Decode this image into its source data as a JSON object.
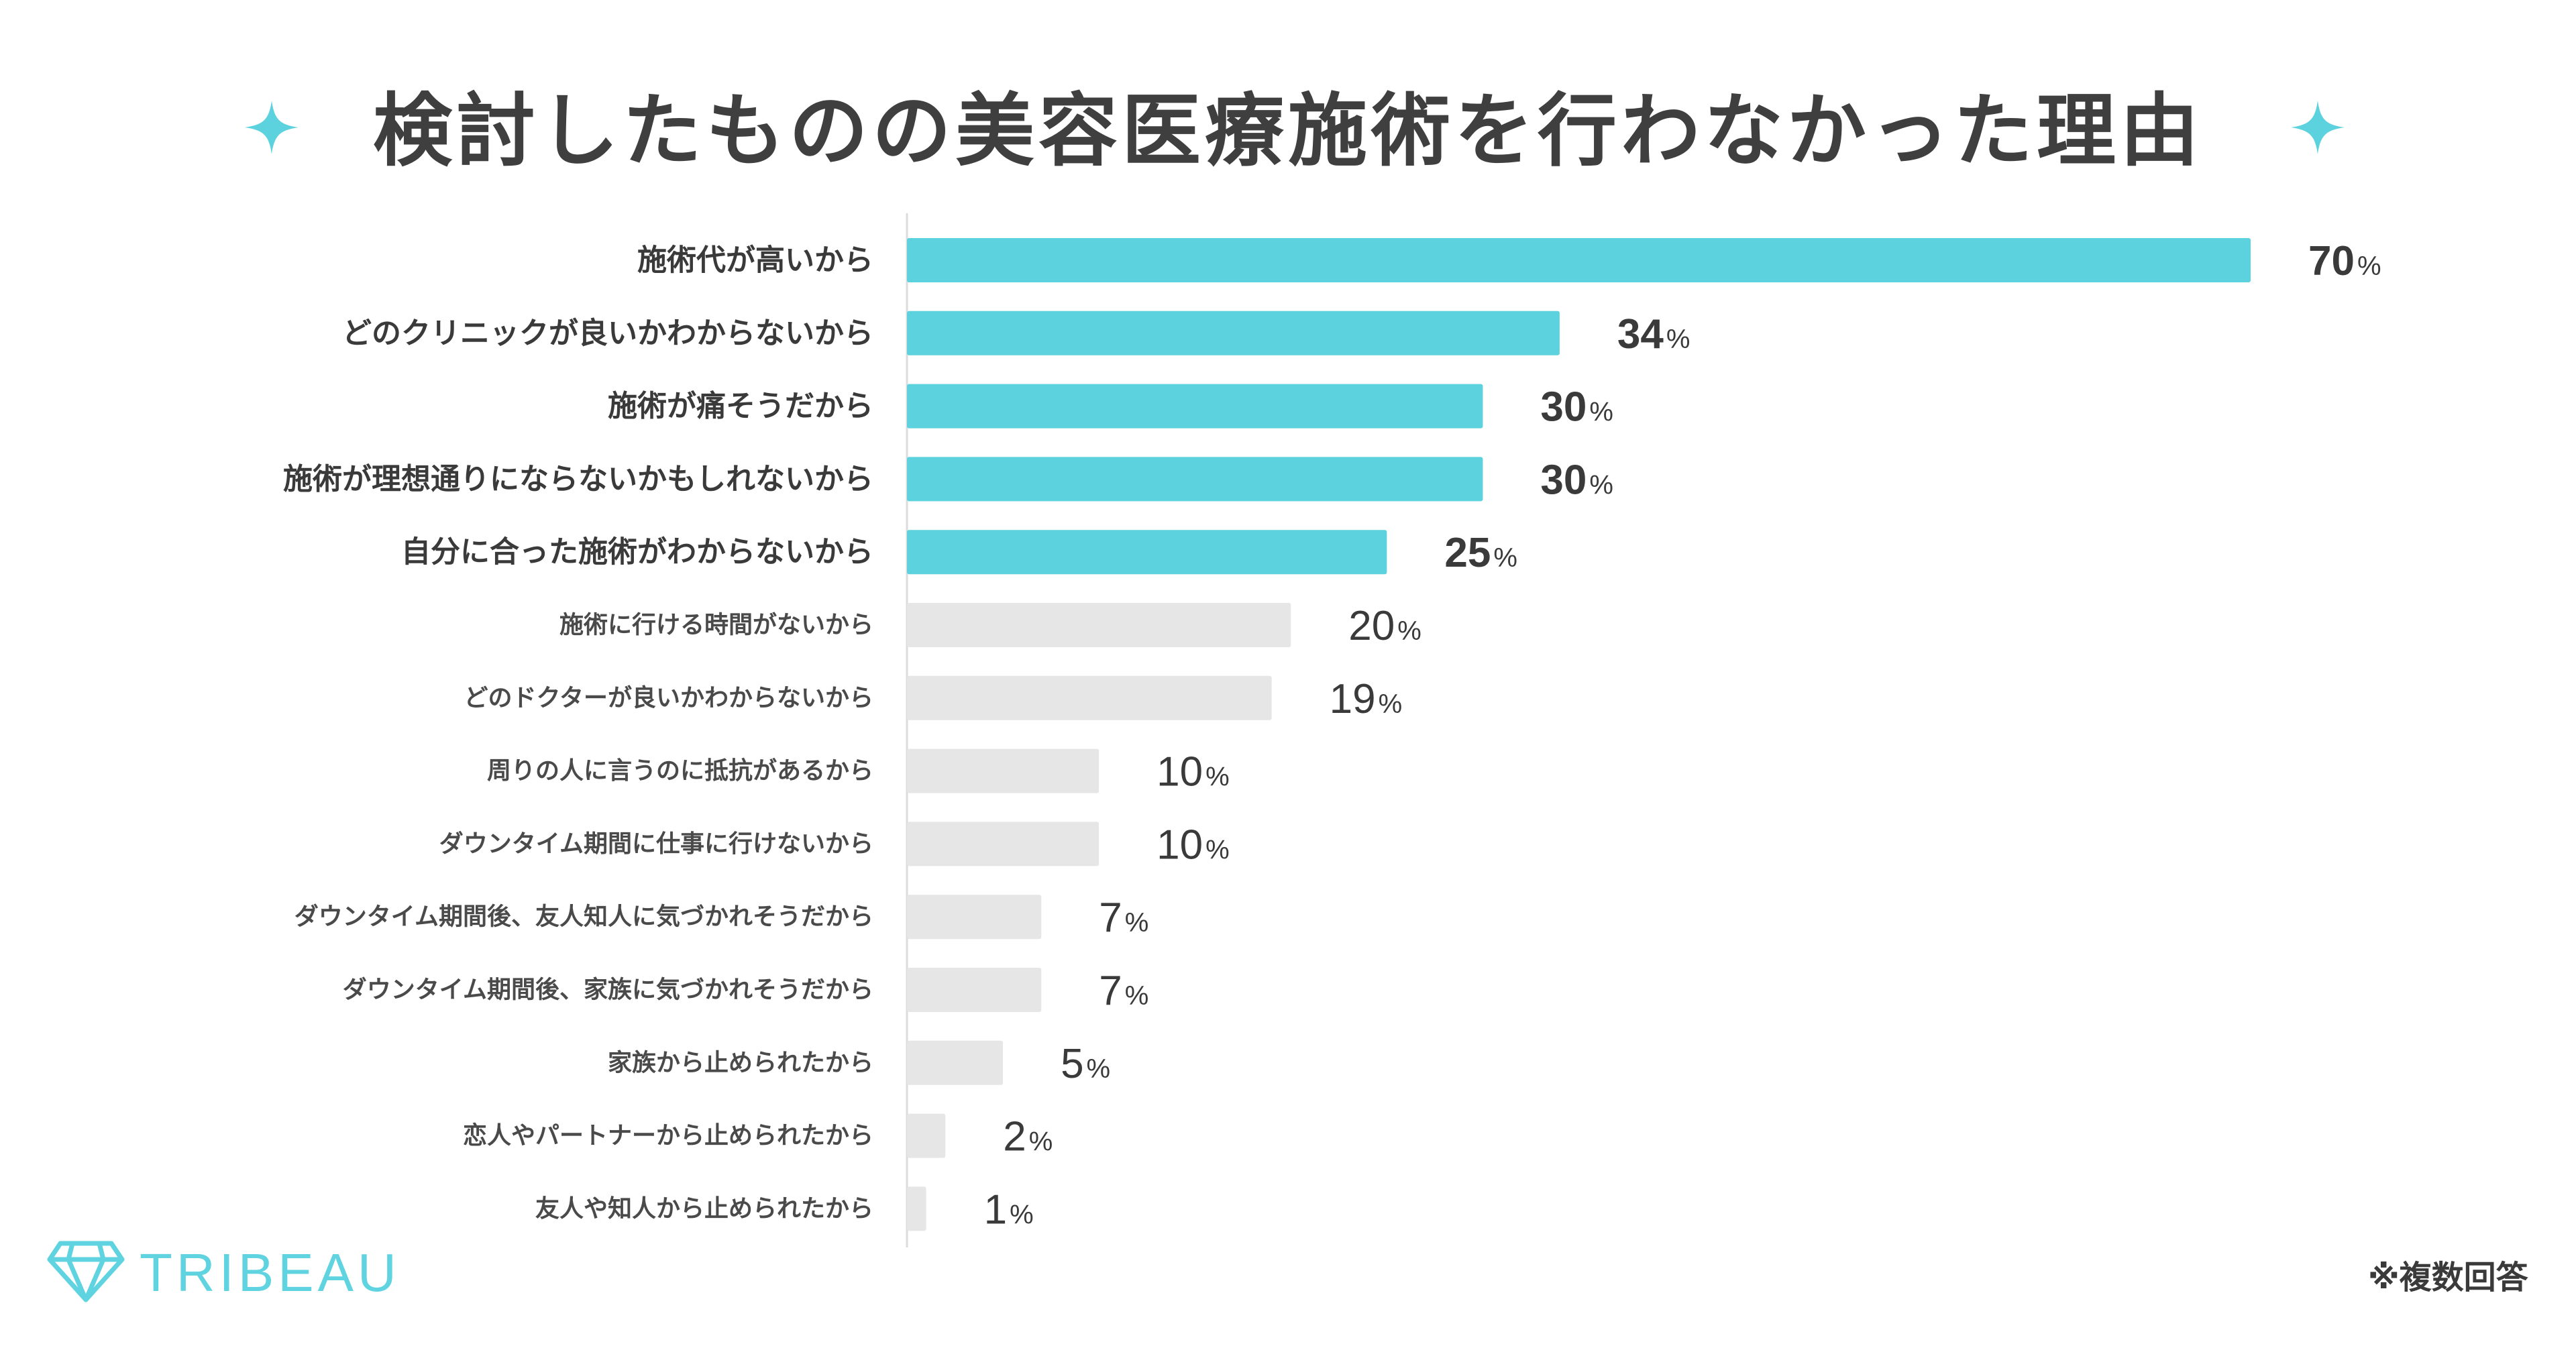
{
  "brand": {
    "name": "TRIBEAU",
    "accent_color": "#5cd2de",
    "muted_color": "#e6e6e6",
    "text_color": "#3a3a3a"
  },
  "icons": {
    "title_left": "sparkle-icon",
    "title_right": "sparkle-icon",
    "logo": "diamond-icon"
  },
  "footnote": "※複数回答",
  "chart_data": {
    "type": "bar",
    "orientation": "horizontal",
    "title": "検討したものの美容医療施術を行わなかった理由",
    "unit": "%",
    "xlim": [
      0,
      70
    ],
    "categories": [
      "施術代が高いから",
      "どのクリニックが良いかわからないから",
      "施術が痛そうだから",
      "施術が理想通りにならないかもしれないから",
      "自分に合った施術がわからないから",
      "施術に行ける時間がないから",
      "どのドクターが良いかわからないから",
      "周りの人に言うのに抵抗があるから",
      "ダウンタイム期間に仕事に行けないから",
      "ダウンタイム期間後、友人知人に気づかれそうだから",
      "ダウンタイム期間後、家族に気づかれそうだから",
      "家族から止められたから",
      "恋人やパートナーから止められたから",
      "友人や知人から止められたから"
    ],
    "values": [
      70,
      34,
      30,
      30,
      25,
      20,
      19,
      10,
      10,
      7,
      7,
      5,
      2,
      1
    ],
    "highlighted": [
      true,
      true,
      true,
      true,
      true,
      false,
      false,
      false,
      false,
      false,
      false,
      false,
      false,
      false
    ]
  }
}
